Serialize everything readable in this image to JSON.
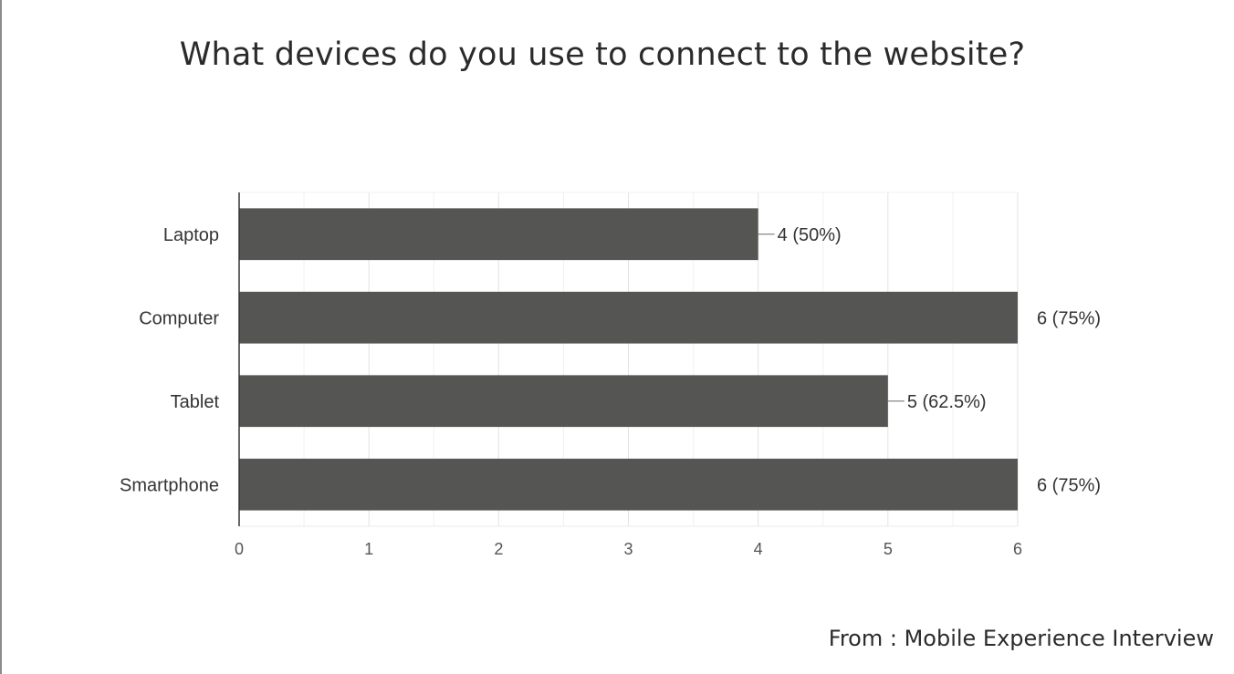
{
  "title": "What devices do you use to connect to the website?",
  "source": "From : Mobile Experience Interview",
  "chart_data": {
    "type": "bar",
    "orientation": "horizontal",
    "categories": [
      "Laptop",
      "Computer",
      "Tablet",
      "Smartphone"
    ],
    "values": [
      4,
      6,
      5,
      6
    ],
    "data_labels": [
      "4 (50%)",
      "6 (75%)",
      "5 (62.5%)",
      "6 (75%)"
    ],
    "xticks": [
      0,
      1,
      2,
      3,
      4,
      5,
      6
    ],
    "xlim": [
      0,
      6
    ],
    "grid": true,
    "bar_color": "#555553"
  }
}
